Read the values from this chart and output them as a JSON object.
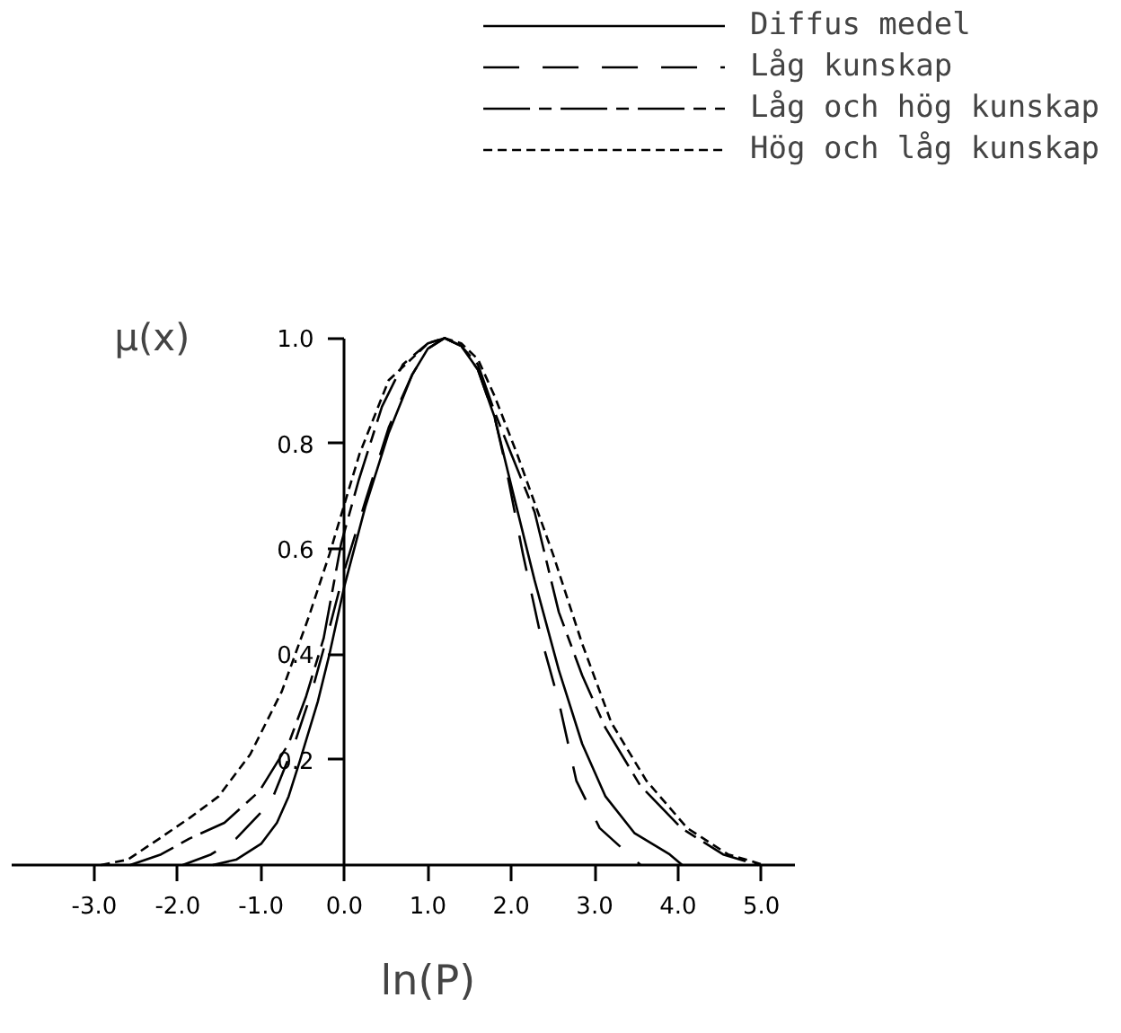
{
  "chart_data": {
    "type": "line",
    "xlabel": "ln(P)",
    "ylabel": "μ(x)",
    "legend": "top right",
    "xlim": [
      -4.0,
      5.4
    ],
    "ylim": [
      0,
      1.0
    ],
    "xticks": [
      {
        "value": -3,
        "label": "-3.0"
      },
      {
        "value": -2,
        "label": "-2.0"
      },
      {
        "value": -1,
        "label": "-1.0"
      },
      {
        "value": 0,
        "label": "0.0"
      },
      {
        "value": 1,
        "label": "1.0"
      },
      {
        "value": 2,
        "label": "2.0"
      },
      {
        "value": 3,
        "label": "3.0"
      },
      {
        "value": 4,
        "label": "4.0"
      },
      {
        "value": 5,
        "label": "5.0"
      }
    ],
    "yticks": [
      0.2,
      0.4,
      0.6,
      0.8,
      {
        "value": 1,
        "label": "1.0"
      }
    ],
    "series": [
      {
        "name": "Diffus medel",
        "color": "#000000",
        "line_style": "solid",
        "x": [
          -1.58,
          -1.3,
          -1.0,
          -0.81,
          -0.67,
          -0.53,
          -0.32,
          -0.18,
          0.0,
          0.25,
          0.53,
          0.81,
          1.0,
          1.2,
          1.4,
          1.6,
          1.8,
          2.0,
          2.28,
          2.57,
          2.85,
          3.13,
          3.48,
          3.9,
          4.05
        ],
        "values": [
          0,
          0.01,
          0.04,
          0.08,
          0.13,
          0.2,
          0.31,
          0.4,
          0.53,
          0.68,
          0.82,
          0.93,
          0.98,
          1.0,
          0.985,
          0.94,
          0.85,
          0.72,
          0.54,
          0.37,
          0.23,
          0.13,
          0.06,
          0.02,
          0
        ]
      },
      {
        "name": "Låg kunskap",
        "color": "#000000",
        "line_style": "dashed",
        "x": [
          -1.94,
          -1.6,
          -1.3,
          -0.88,
          -0.6,
          -0.39,
          -0.18,
          0.0,
          0.25,
          0.53,
          0.81,
          1.0,
          1.2,
          1.4,
          1.6,
          1.8,
          1.93,
          2.14,
          2.36,
          2.57,
          2.78,
          3.06,
          3.41,
          3.55
        ],
        "values": [
          0,
          0.02,
          0.05,
          0.12,
          0.23,
          0.33,
          0.45,
          0.56,
          0.69,
          0.83,
          0.93,
          0.98,
          1.0,
          0.985,
          0.94,
          0.85,
          0.76,
          0.59,
          0.43,
          0.31,
          0.16,
          0.07,
          0.02,
          0
        ]
      },
      {
        "name": "Låg och hög kunskap",
        "color": "#000000",
        "line_style": "dashdot",
        "x": [
          -2.57,
          -2.2,
          -1.86,
          -1.44,
          -1.02,
          -0.67,
          -0.46,
          -0.25,
          -0.04,
          0.17,
          0.45,
          0.7,
          1.0,
          1.2,
          1.4,
          1.6,
          1.8,
          2.0,
          2.28,
          2.57,
          2.85,
          3.13,
          3.55,
          4.04,
          4.54,
          4.96
        ],
        "values": [
          0,
          0.02,
          0.05,
          0.08,
          0.14,
          0.23,
          0.32,
          0.43,
          0.61,
          0.73,
          0.87,
          0.95,
          0.99,
          1.0,
          0.985,
          0.95,
          0.86,
          0.78,
          0.67,
          0.48,
          0.36,
          0.26,
          0.15,
          0.07,
          0.02,
          0
        ]
      },
      {
        "name": "Hög och låg kunskap",
        "color": "#000000",
        "line_style": "dotted",
        "x": [
          -2.92,
          -2.6,
          -2.22,
          -1.85,
          -1.51,
          -1.13,
          -0.75,
          -0.43,
          -0.18,
          0.18,
          0.53,
          0.8,
          1.0,
          1.2,
          1.4,
          1.6,
          1.8,
          2.07,
          2.5,
          2.85,
          3.2,
          3.62,
          4.11,
          4.6,
          5.03
        ],
        "values": [
          0,
          0.01,
          0.05,
          0.09,
          0.13,
          0.21,
          0.33,
          0.47,
          0.59,
          0.78,
          0.92,
          0.96,
          0.99,
          1.0,
          0.99,
          0.96,
          0.89,
          0.78,
          0.59,
          0.42,
          0.27,
          0.16,
          0.07,
          0.02,
          0
        ]
      }
    ]
  }
}
